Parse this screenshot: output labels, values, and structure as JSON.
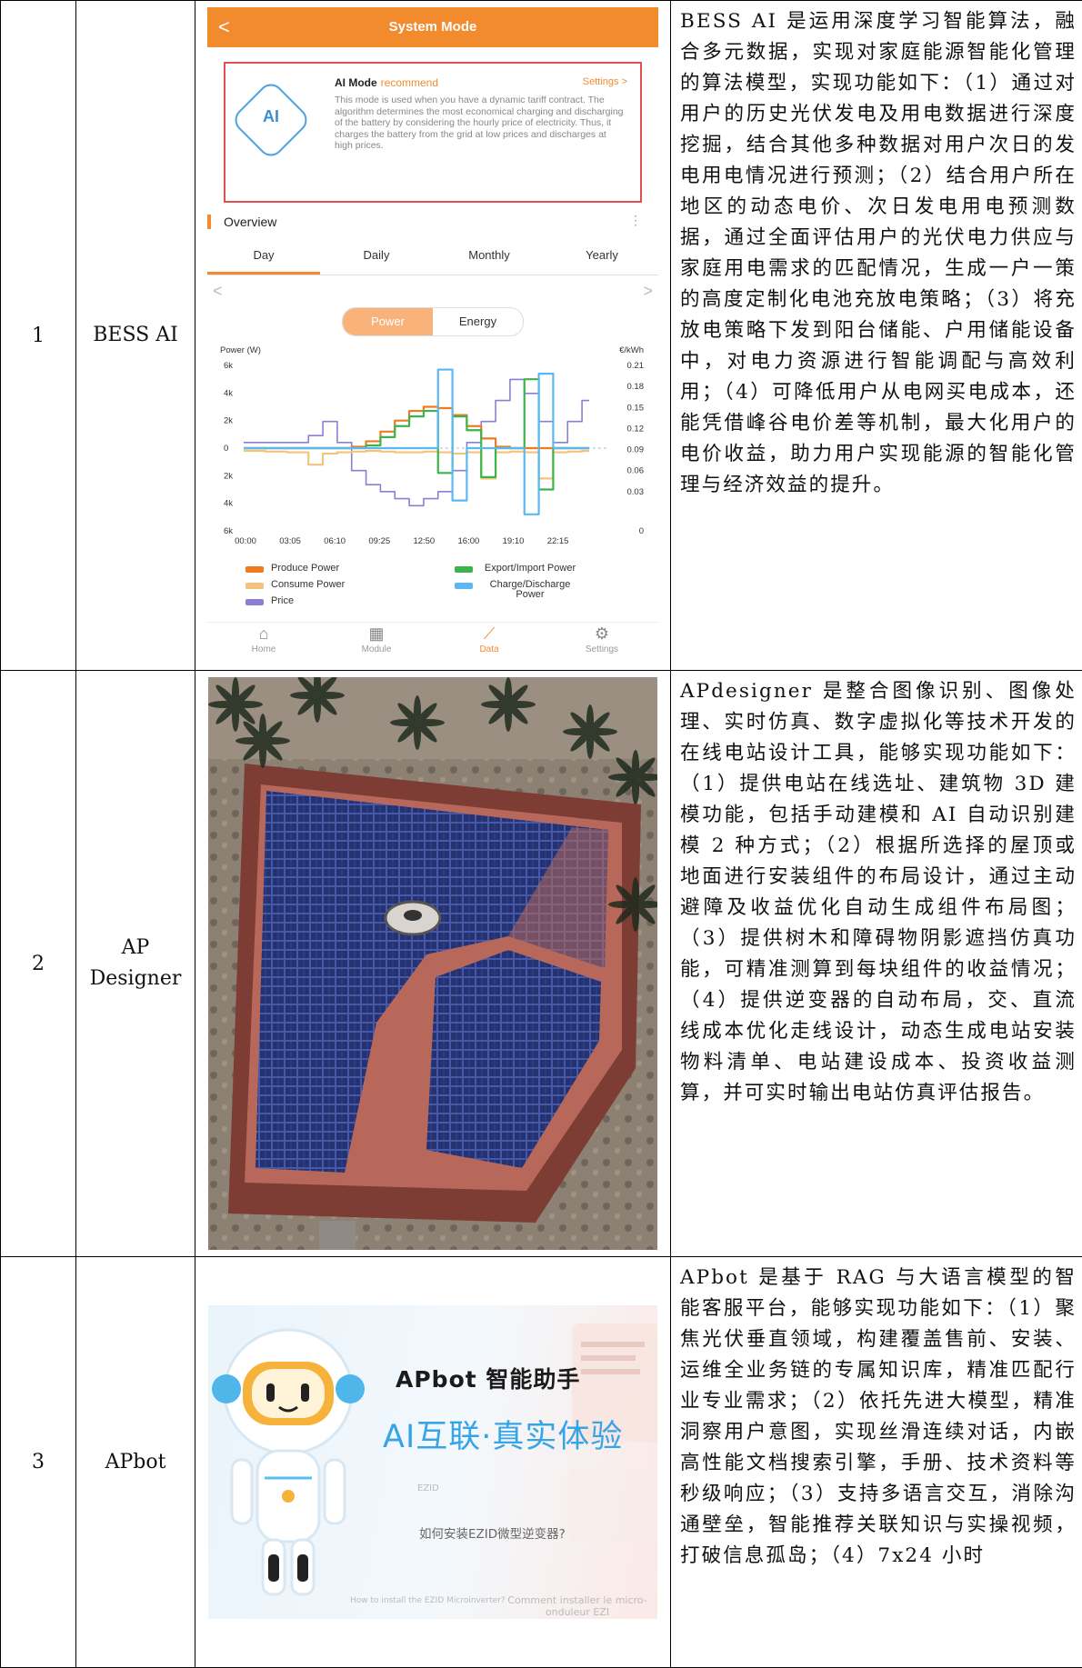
{
  "rows": [
    {
      "no": "1",
      "name": "BESS AI",
      "desc": "BESS AI 是运用深度学习智能算法，融合多元数据，实现对家庭能源智能化管理的算法模型，实现功能如下：（1）通过对用户的历史光伏发电及用电数据进行深度挖掘，结合其他多种数据对用户次日的发电用电情况进行预测；（2）结合用户所在地区的动态电价、次日发电用电预测数据，通过全面评估用户的光伏电力供应与家庭用电需求的匹配情况，生成一户一策的高度定制化电池充放电策略；（3）将充放电策略下发到阳台储能、户用储能设备中，对电力资源进行智能调配与高效利用；（4）可降低用户从电网买电成本，还能凭借峰谷电价差等机制，最大化用户的电价收益，助力用户实现能源的智能化管理与经济效益的提升。"
    },
    {
      "no": "2",
      "name": "AP Designer",
      "desc": "APdesigner 是整合图像识别、图像处理、实时仿真、数字虚拟化等技术开发的在线电站设计工具，能够实现功能如下：（1）提供电站在线选址、建筑物 3D 建模功能，包括手动建模和 AI 自动识别建模 2 种方式；（2）根据所选择的屋顶或地面进行安装组件的布局设计，通过主动避障及收益优化自动生成组件布局图；（3）提供树木和障碍物阴影遮挡仿真功能，可精准测算到每块组件的收益情况；（4）提供逆变器的自动布局，交、直流线成本优化走线设计，动态生成电站安装物料清单、电站建设成本、投资收益测算，并可实时输出电站仿真评估报告。"
    },
    {
      "no": "3",
      "name": "APbot",
      "desc": "APbot 是基于 RAG 与大语言模型的智能客服平台，能够实现功能如下：（1）聚焦光伏垂直领域，构建覆盖售前、安装、运维全业务链的专属知识库，精准匹配行业专业需求；（2）依托先进大模型，精准洞察用户意图，实现丝滑连续对话，内嵌高性能文档搜索引擎，手册、技术资料等秒级响应；（3）支持多语言交互，消除沟通壁垒，智能推荐关联知识与实操视频，打破信息孤岛；（4）7x24 小时"
    }
  ],
  "app": {
    "header_title": "System Mode",
    "back_glyph": "<",
    "mode_name": "AI Mode",
    "mode_tag": "recommend",
    "settings_link": "Settings >",
    "mode_icon_text": "AI",
    "mode_body": "This mode is used when you have a dynamic tariff contract. The algorithm determines the most economical charging and discharging of the battery by considering the hourly price of electricity. Thus, it charges the battery from the grid at low prices and discharges at high prices.",
    "overview_title": "Overview",
    "tabs": [
      "Day",
      "Daily",
      "Monthly",
      "Yearly"
    ],
    "active_tab": "Day",
    "toggle": [
      "Power",
      "Energy"
    ],
    "nav_left": "<",
    "nav_right": ">",
    "bottom_nav": [
      {
        "label": "Home",
        "icon": "home-icon",
        "glyph": "⌂"
      },
      {
        "label": "Module",
        "icon": "module-icon",
        "glyph": "▦"
      },
      {
        "label": "Data",
        "icon": "chart-icon",
        "glyph": "⟋"
      },
      {
        "label": "Settings",
        "icon": "gear-icon",
        "glyph": "⚙"
      }
    ],
    "colors": {
      "accent": "#f28b2e",
      "produce": "#f07a1e",
      "consume": "#f5c27a",
      "price": "#8a7fd0",
      "export_import": "#3cb44b",
      "charge": "#5bb8f0"
    }
  },
  "chart_data": {
    "type": "line",
    "ylabel_left": "Power (W)",
    "ylabel_right": "€/kWh",
    "y_left_ticks": [
      "6k",
      "4k",
      "2k",
      "0",
      "2k",
      "4k",
      "6k"
    ],
    "y_right_ticks": [
      "0.21",
      "0.18",
      "0.15",
      "0.12",
      "0.09",
      "0.06",
      "0.03",
      "0"
    ],
    "x_ticks": [
      "00:00",
      "03:05",
      "06:10",
      "09:25",
      "12:50",
      "16:00",
      "19:10",
      "22:15"
    ],
    "legend": [
      "Produce Power",
      "Export/Import Power",
      "Consume Power",
      "Charge/Discharge Power",
      "Price"
    ],
    "x": [
      0,
      1.5,
      3,
      4.5,
      5.5,
      6.5,
      7.5,
      8.5,
      9.5,
      10.5,
      11.5,
      12.5,
      13.5,
      14.5,
      15.5,
      16.5,
      17.5,
      18.5,
      19.5,
      20.5,
      21.5,
      22.5,
      23.5
    ],
    "series": [
      {
        "name": "Price",
        "values": [
          0.1,
          0.1,
          0.1,
          0.11,
          0.13,
          0.1,
          0.06,
          0.04,
          0.03,
          0.02,
          0.01,
          0.02,
          0.03,
          0.06,
          0.1,
          0.13,
          0.16,
          0.19,
          0.17,
          0.13,
          0.1,
          0.13,
          0.16
        ]
      },
      {
        "name": "Consume Power",
        "values": [
          -200,
          -250,
          -300,
          -1200,
          -400,
          -300,
          -250,
          -200,
          -250,
          -300,
          -300,
          -250,
          -300,
          -400,
          -300,
          -2200,
          -300,
          -250,
          -300,
          -2200,
          -300,
          -250,
          -200
        ]
      },
      {
        "name": "Produce Power",
        "values": [
          0,
          0,
          0,
          0,
          0,
          0,
          100,
          500,
          1200,
          2000,
          2700,
          3000,
          2900,
          2400,
          1600,
          700,
          100,
          0,
          0,
          0,
          0,
          0,
          0
        ]
      },
      {
        "name": "Export/Import Power",
        "values": [
          0,
          0,
          0,
          0,
          0,
          0,
          0,
          200,
          800,
          1600,
          2300,
          2700,
          -1800,
          2300,
          1300,
          -2100,
          0,
          0,
          5000,
          -3000,
          0,
          0,
          0
        ]
      },
      {
        "name": "Charge/Discharge Power",
        "values": [
          0,
          0,
          0,
          0,
          0,
          0,
          0,
          0,
          0,
          0,
          0,
          0,
          5700,
          -3800,
          0,
          0,
          0,
          0,
          -4800,
          5400,
          0,
          0,
          0
        ]
      }
    ]
  },
  "roof_image": {
    "caption": ""
  },
  "bot": {
    "title": "APbot 智能助手",
    "slogan": "AI互联·真实体验",
    "question_cn": "如何安装EZID微型逆变器?",
    "question_en": "How to install the EZID Microinverter?",
    "question_fr": "Comment installer le micro-onduleur EZI",
    "ezid_label": "EZID"
  }
}
